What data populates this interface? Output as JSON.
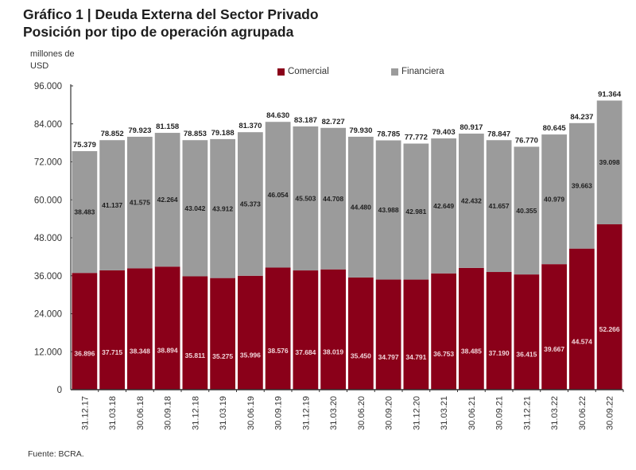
{
  "header": {
    "title": "Gráfico 1 | Deuda Externa del Sector Privado",
    "subtitle": "Posición por tipo de operación agrupada"
  },
  "footer": {
    "source": "Fuente: BCRA."
  },
  "chart_data": {
    "type": "bar",
    "stacked": true,
    "title": "Gráfico 1 | Deuda Externa del Sector Privado",
    "subtitle": "Posición por tipo de operación agrupada",
    "xlabel": "",
    "ylabel": "millones de USD",
    "ylim": [
      0,
      96000
    ],
    "yticks": [
      0,
      12000,
      24000,
      36000,
      48000,
      60000,
      72000,
      84000,
      96000
    ],
    "ytick_labels": [
      "0",
      "12.000",
      "24.000",
      "36.000",
      "48.000",
      "60.000",
      "72.000",
      "84.000",
      "96.000"
    ],
    "grid": false,
    "legend_position": "top-center",
    "categories": [
      "31.12.17",
      "31.03.18",
      "30.06.18",
      "30.09.18",
      "31.12.18",
      "31.03.19",
      "30.06.19",
      "30.09.19",
      "31.12.19",
      "31.03.20",
      "30.06.20",
      "30.09.20",
      "31.12.20",
      "31.03.21",
      "30.06.21",
      "30.09.21",
      "31.12.21",
      "31.03.22",
      "30.06.22",
      "30.09.22"
    ],
    "series": [
      {
        "name": "Comercial",
        "color": "#8a0019",
        "label_color": "#f2d6db",
        "values": [
          36896,
          37715,
          38348,
          38894,
          35811,
          35275,
          35996,
          38576,
          37684,
          38019,
          35450,
          34797,
          34791,
          36753,
          38485,
          37190,
          36415,
          39667,
          44574,
          52266
        ],
        "labels": [
          "36.896",
          "37.715",
          "38.348",
          "38.894",
          "35.811",
          "35.275",
          "35.996",
          "38.576",
          "37.684",
          "38.019",
          "35.450",
          "34.797",
          "34.791",
          "36.753",
          "38.485",
          "37.190",
          "36.415",
          "39.667",
          "44.574",
          "52.266"
        ]
      },
      {
        "name": "Financiera",
        "color": "#9b9b9b",
        "label_color": "#1e1e1e",
        "values": [
          38483,
          41137,
          41575,
          42264,
          43042,
          43912,
          45373,
          46054,
          45503,
          44708,
          44480,
          43988,
          42981,
          42649,
          42432,
          41657,
          40355,
          40979,
          39663,
          39098
        ],
        "labels": [
          "38.483",
          "41.137",
          "41.575",
          "42.264",
          "43.042",
          "43.912",
          "45.373",
          "46.054",
          "45.503",
          "44.708",
          "44.480",
          "43.988",
          "42.981",
          "42.649",
          "42.432",
          "41.657",
          "40.355",
          "40.979",
          "39.663",
          "39.098"
        ]
      }
    ],
    "totals": [
      75379,
      78852,
      79923,
      81158,
      78853,
      79188,
      81370,
      84630,
      83187,
      82727,
      79930,
      78785,
      77772,
      79403,
      80917,
      78847,
      76770,
      80645,
      84237,
      91364
    ],
    "total_labels": [
      "75.379",
      "78.852",
      "79.923",
      "81.158",
      "78.853",
      "79.188",
      "81.370",
      "84.630",
      "83.187",
      "82.727",
      "79.930",
      "78.785",
      "77.772",
      "79.403",
      "80.917",
      "78.847",
      "76.770",
      "80.645",
      "84.237",
      "91.364"
    ]
  }
}
